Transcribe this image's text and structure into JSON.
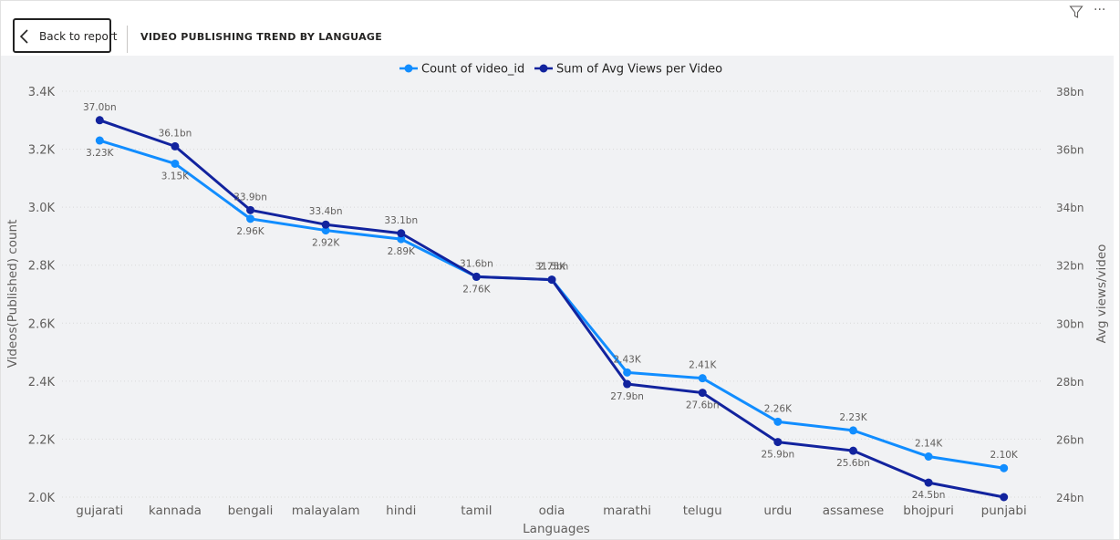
{
  "header": {
    "back_label": "Back to report",
    "title": "VIDEO PUBLISHING TREND BY LANGUAGE",
    "back_icon": "chevron-left-icon",
    "filter_icon": "filter-icon",
    "more_icon": "more-options-icon",
    "more_glyph": "···"
  },
  "colors": {
    "series1": "#118dff",
    "series2": "#12239e",
    "gridline": "#d9d9d9",
    "plot_background": "#f1f2f4"
  },
  "chart_data": {
    "type": "line",
    "title": "",
    "xlabel": "Languages",
    "ylabel": "Videos(Published) count",
    "y2label": "Avg views/video",
    "legend_position": "top-center",
    "grid": true,
    "categories": [
      "gujarati",
      "kannada",
      "bengali",
      "malayalam",
      "hindi",
      "tamil",
      "odia",
      "marathi",
      "telugu",
      "urdu",
      "assamese",
      "bhojpuri",
      "punjabi"
    ],
    "y_ticks": [
      "2.0K",
      "2.2K",
      "2.4K",
      "2.6K",
      "2.8K",
      "3.0K",
      "3.2K",
      "3.4K"
    ],
    "y2_ticks": [
      "24bn",
      "26bn",
      "28bn",
      "30bn",
      "32bn",
      "34bn",
      "36bn",
      "38bn"
    ],
    "ylim": [
      2000,
      3400
    ],
    "y2lim": [
      24,
      38
    ],
    "series": [
      {
        "name": "Count of video_id",
        "axis": "left",
        "values": [
          3230,
          3150,
          2960,
          2920,
          2890,
          2760,
          2750,
          2430,
          2410,
          2260,
          2230,
          2140,
          2100
        ],
        "labels": [
          "3.23K",
          "3.15K",
          "2.96K",
          "2.92K",
          "2.89K",
          "2.76K",
          "2.75K",
          "2.43K",
          "2.41K",
          "2.26K",
          "2.23K",
          "2.14K",
          "2.10K"
        ]
      },
      {
        "name": "Sum of Avg Views per Video",
        "axis": "right",
        "values": [
          37.0,
          36.1,
          33.9,
          33.4,
          33.1,
          31.6,
          31.5,
          27.9,
          27.6,
          25.9,
          25.6,
          24.5,
          24.0
        ],
        "labels": [
          "37.0bn",
          "36.1bn",
          "33.9bn",
          "33.4bn",
          "33.1bn",
          "31.6bn",
          "31.5bn",
          "27.9bn",
          "27.6bn",
          "25.9bn",
          "25.6bn",
          "24.5bn",
          ""
        ]
      }
    ]
  }
}
